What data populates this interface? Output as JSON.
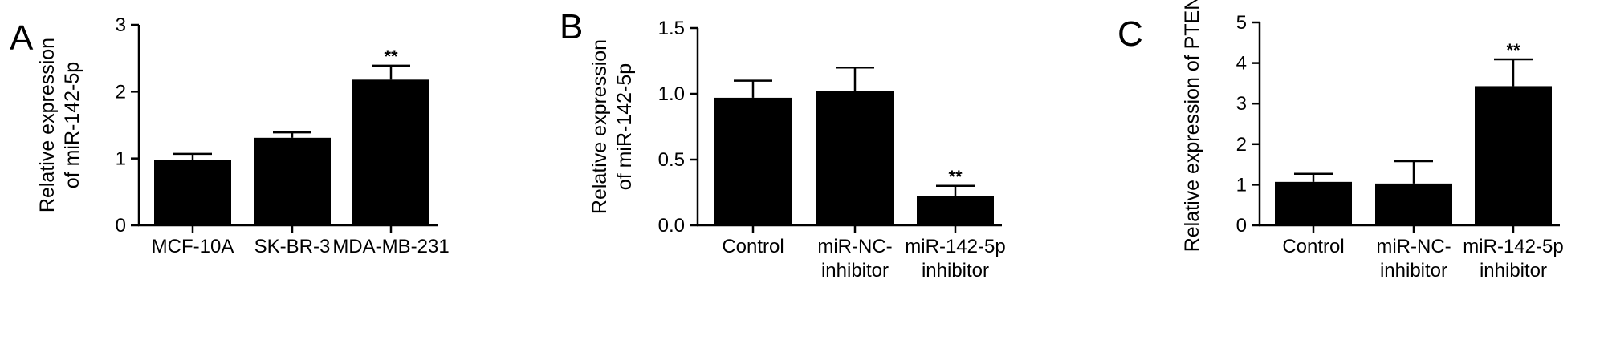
{
  "chart_data": [
    {
      "type": "bar",
      "panel": "A",
      "categories": [
        [
          "MCF-10A"
        ],
        [
          "SK-BR-3"
        ],
        [
          "MDA-MB-231"
        ]
      ],
      "values": [
        0.98,
        1.31,
        2.18
      ],
      "errors": [
        0.09,
        0.08,
        0.21
      ],
      "annotations": [
        "",
        "",
        "**"
      ],
      "ylabel": [
        "Relative expression",
        "of miR-142-5p"
      ],
      "ylim": [
        0,
        3
      ],
      "yticks": [
        0,
        1,
        2,
        3
      ],
      "ytick_labels": [
        "0",
        "1",
        "2",
        "3"
      ],
      "grid": false,
      "bar_color": "#000000"
    },
    {
      "type": "bar",
      "panel": "B",
      "categories": [
        [
          "Control"
        ],
        [
          "miR-NC-",
          "inhibitor"
        ],
        [
          "miR-142-5p",
          "inhibitor"
        ]
      ],
      "values": [
        0.97,
        1.02,
        0.22
      ],
      "errors": [
        0.13,
        0.18,
        0.08
      ],
      "annotations": [
        "",
        "",
        "**"
      ],
      "ylabel": [
        "Relative expression",
        "of miR-142-5p"
      ],
      "ylim": [
        0,
        1.5
      ],
      "yticks": [
        0,
        0.5,
        1.0,
        1.5
      ],
      "ytick_labels": [
        "0.0",
        "0.5",
        "1.0",
        "1.5"
      ],
      "grid": false,
      "bar_color": "#000000"
    },
    {
      "type": "bar",
      "panel": "C",
      "categories": [
        [
          "Control"
        ],
        [
          "miR-NC-",
          "inhibitor"
        ],
        [
          "miR-142-5p",
          "inhibitor"
        ]
      ],
      "values": [
        1.07,
        1.03,
        3.43
      ],
      "errors": [
        0.2,
        0.55,
        0.66
      ],
      "annotations": [
        "",
        "",
        "**"
      ],
      "ylabel": [
        "Relative expression of PTEN"
      ],
      "ylim": [
        0,
        5
      ],
      "yticks": [
        0,
        1,
        2,
        3,
        4,
        5
      ],
      "ytick_labels": [
        "0",
        "1",
        "2",
        "3",
        "4",
        "5"
      ],
      "grid": false,
      "bar_color": "#000000"
    }
  ]
}
